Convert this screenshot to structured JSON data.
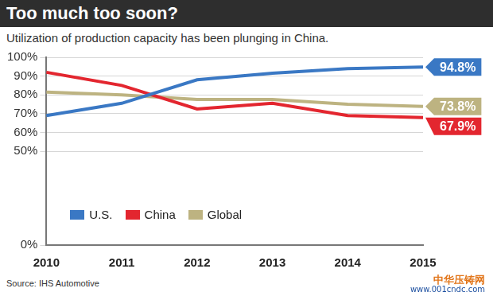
{
  "chart_data": {
    "type": "line",
    "title": "Too much too soon?",
    "subtitle": "Utilization of production capacity has been plunging in China.",
    "source": "Source: IHS Automotive",
    "watermark": [
      "中华压铸网",
      "www.001cndc.com"
    ],
    "categories": [
      "2010",
      "2011",
      "2012",
      "2013",
      "2014",
      "2015"
    ],
    "series": [
      {
        "name": "U.S.",
        "color": "#3a78c4",
        "values": [
          69,
          75.5,
          88,
          91.5,
          94,
          94.8
        ],
        "value_labels": [
          null,
          null,
          null,
          null,
          null,
          "94.8%"
        ]
      },
      {
        "name": "China",
        "color": "#e3262f",
        "values": [
          92,
          85,
          72.5,
          75.5,
          69,
          67.9
        ],
        "value_labels": [
          null,
          null,
          null,
          null,
          null,
          "67.9%"
        ]
      },
      {
        "name": "Global",
        "color": "#bdb381",
        "values": [
          81.5,
          80,
          77.5,
          77.5,
          75,
          73.8
        ],
        "value_labels": [
          null,
          null,
          null,
          null,
          null,
          "73.8%"
        ]
      }
    ],
    "ylim": [
      0,
      100
    ],
    "yticks": [
      {
        "value": 0,
        "label": "0%"
      },
      {
        "value": 50,
        "label": "50%"
      },
      {
        "value": 60,
        "label": "60%"
      },
      {
        "value": 70,
        "label": "70%"
      },
      {
        "value": 80,
        "label": "80%"
      },
      {
        "value": 90,
        "label": "90%"
      },
      {
        "value": 100,
        "label": "100%"
      }
    ],
    "grid": true,
    "legend": "lower left",
    "data_labels": true
  }
}
